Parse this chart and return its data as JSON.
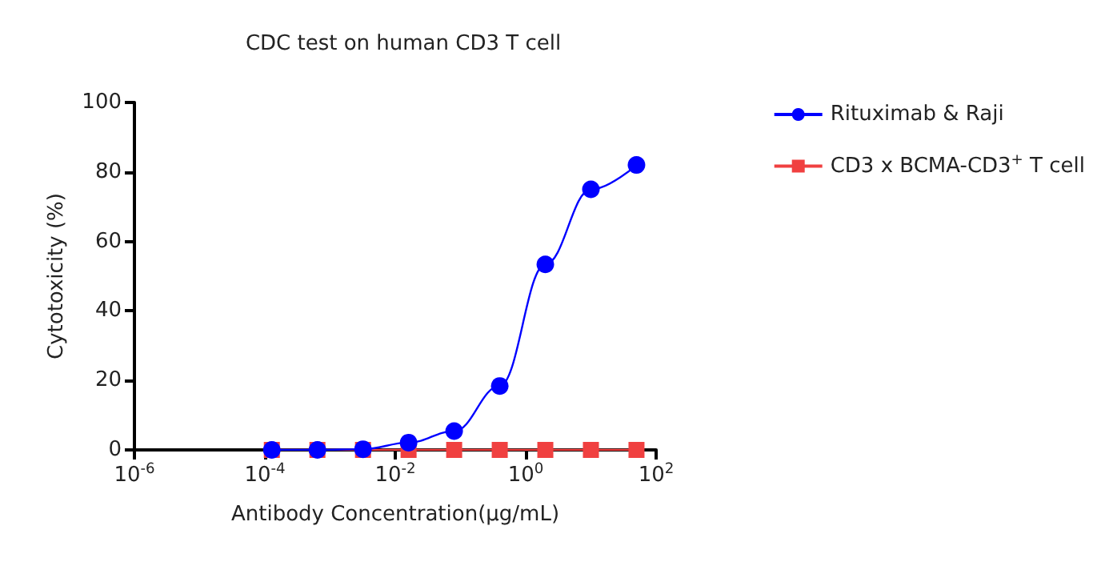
{
  "chart_data": {
    "type": "line",
    "title": "CDC test on human CD3 T cell",
    "xlabel": "Antibody Concentration(μg/mL)",
    "ylabel": "Cytotoxicity (%)",
    "x": [
      0.000128,
      0.00064,
      0.0032,
      0.016,
      0.08,
      0.4,
      2,
      10,
      50
    ],
    "series": [
      {
        "name": "Rituximab & Raji",
        "color": "#0000ff",
        "marker": "circle",
        "values": [
          0,
          0,
          0.2,
          2.1,
          5.4,
          18.4,
          53.4,
          75,
          82
        ]
      },
      {
        "name": "CD3 x BCMA-CD3$^{+}$ T cell",
        "color": "#f04040",
        "marker": "square",
        "values": [
          0,
          0,
          0,
          0,
          0,
          0,
          0,
          0,
          0
        ]
      }
    ],
    "log": "x",
    "xlim": [
      1e-06,
      100
    ],
    "xticks": [
      {
        "value": 1e-06,
        "label": "10$^{-6}$"
      },
      {
        "value": 0.0001,
        "label": "10$^{-4}$"
      },
      {
        "value": 0.01,
        "label": "10$^{-2}$"
      },
      {
        "value": 1,
        "label": "10$^{0}$"
      },
      {
        "value": 100,
        "label": "10$^{2}$"
      }
    ],
    "ylim": [
      0,
      100
    ],
    "yticks": [
      0,
      20,
      40,
      60,
      80,
      100
    ],
    "grid": false,
    "legend": "right",
    "line_style": "solid"
  }
}
